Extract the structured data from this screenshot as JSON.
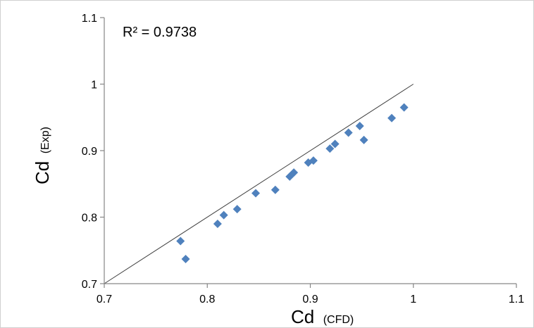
{
  "chart_data": {
    "type": "scatter",
    "title": "",
    "annotation": "R² = 0.9738",
    "xlabel": {
      "main": "Cd",
      "sub": "(CFD)"
    },
    "ylabel": {
      "main": "Cd",
      "sub": "(Exp)"
    },
    "xlim": [
      0.7,
      1.1
    ],
    "ylim": [
      0.7,
      1.1
    ],
    "x_ticks": [
      "0.7",
      "0.8",
      "0.9",
      "1",
      "1.1"
    ],
    "y_ticks": [
      "0.7",
      "0.8",
      "0.9",
      "1",
      "1.1"
    ],
    "reference_line": {
      "x": [
        0.7,
        1.0
      ],
      "y": [
        0.7,
        1.0
      ]
    },
    "marker_color": "#4f81bd",
    "points": [
      {
        "x": 0.774,
        "y": 0.764
      },
      {
        "x": 0.779,
        "y": 0.737
      },
      {
        "x": 0.81,
        "y": 0.79
      },
      {
        "x": 0.816,
        "y": 0.803
      },
      {
        "x": 0.829,
        "y": 0.812
      },
      {
        "x": 0.847,
        "y": 0.836
      },
      {
        "x": 0.866,
        "y": 0.841
      },
      {
        "x": 0.88,
        "y": 0.861
      },
      {
        "x": 0.884,
        "y": 0.867
      },
      {
        "x": 0.898,
        "y": 0.882
      },
      {
        "x": 0.903,
        "y": 0.885
      },
      {
        "x": 0.919,
        "y": 0.903
      },
      {
        "x": 0.924,
        "y": 0.91
      },
      {
        "x": 0.937,
        "y": 0.927
      },
      {
        "x": 0.948,
        "y": 0.937
      },
      {
        "x": 0.952,
        "y": 0.916
      },
      {
        "x": 0.979,
        "y": 0.949
      },
      {
        "x": 0.991,
        "y": 0.965
      }
    ]
  }
}
